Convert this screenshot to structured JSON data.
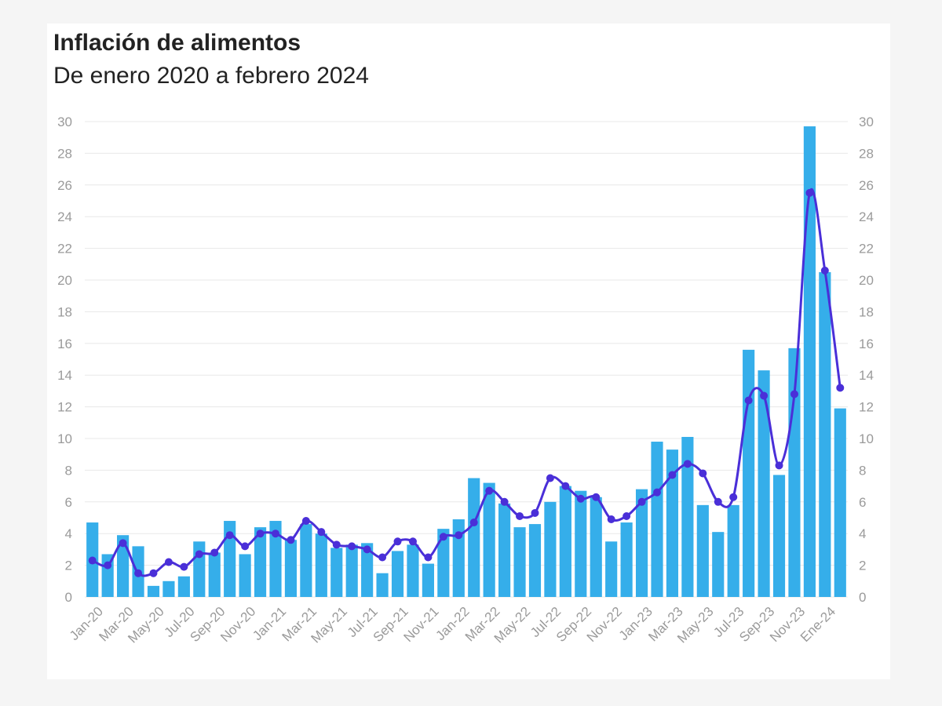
{
  "title": "Inflación de alimentos",
  "subtitle": "De enero 2020 a febrero 2024",
  "colors": {
    "bar": "#35aeea",
    "line": "#4a2fd8",
    "grid": "#e8e8e8",
    "tick": "#9a9a9a"
  },
  "chart_data": {
    "type": "bar",
    "categories": [
      "Jan-20",
      "Feb-20",
      "Mar-20",
      "Apr-20",
      "May-20",
      "Jun-20",
      "Jul-20",
      "Aug-20",
      "Sep-20",
      "Oct-20",
      "Nov-20",
      "Dec-20",
      "Jan-21",
      "Feb-21",
      "Mar-21",
      "Apr-21",
      "May-21",
      "Jun-21",
      "Jul-21",
      "Aug-21",
      "Sep-21",
      "Oct-21",
      "Nov-21",
      "Dec-21",
      "Jan-22",
      "Feb-22",
      "Mar-22",
      "Apr-22",
      "May-22",
      "Jun-22",
      "Jul-22",
      "Aug-22",
      "Sep-22",
      "Oct-22",
      "Nov-22",
      "Dec-22",
      "Jan-23",
      "Feb-23",
      "Mar-23",
      "Apr-23",
      "May-23",
      "Jun-23",
      "Jul-23",
      "Aug-23",
      "Sep-23",
      "Oct-23",
      "Nov-23",
      "Dec-23",
      "Ene-24",
      "Feb-24"
    ],
    "x_tick_labels": [
      "Jan-20",
      "Mar-20",
      "May-20",
      "Jul-20",
      "Sep-20",
      "Nov-20",
      "Jan-21",
      "Mar-21",
      "May-21",
      "Jul-21",
      "Sep-21",
      "Nov-21",
      "Jan-22",
      "Mar-22",
      "May-22",
      "Jul-22",
      "Sep-22",
      "Nov-22",
      "Jan-23",
      "Mar-23",
      "May-23",
      "Jul-23",
      "Sep-23",
      "Nov-23",
      "Ene-24"
    ],
    "series": [
      {
        "type": "bar",
        "values": [
          4.7,
          2.7,
          3.9,
          3.2,
          0.7,
          1.0,
          1.3,
          3.5,
          2.8,
          4.8,
          2.7,
          4.4,
          4.8,
          3.6,
          4.6,
          4.0,
          3.1,
          3.3,
          3.4,
          1.5,
          2.9,
          3.3,
          2.1,
          4.3,
          4.9,
          7.5,
          7.2,
          5.9,
          4.4,
          4.6,
          6.0,
          7.0,
          6.7,
          6.3,
          3.5,
          4.7,
          6.8,
          9.8,
          9.3,
          10.1,
          5.8,
          4.1,
          5.8,
          15.6,
          14.3,
          7.7,
          15.7,
          29.7,
          20.5,
          11.9
        ]
      },
      {
        "type": "line",
        "values": [
          2.3,
          2.0,
          3.4,
          1.5,
          1.5,
          2.2,
          1.9,
          2.7,
          2.8,
          3.9,
          3.2,
          4.0,
          4.0,
          3.6,
          4.8,
          4.1,
          3.3,
          3.2,
          3.0,
          2.5,
          3.5,
          3.5,
          2.5,
          3.8,
          3.9,
          4.7,
          6.7,
          6.0,
          5.1,
          5.3,
          7.5,
          7.0,
          6.2,
          6.3,
          4.9,
          5.1,
          6.0,
          6.6,
          7.7,
          8.4,
          7.8,
          6.0,
          6.3,
          12.4,
          12.7,
          8.3,
          12.8,
          25.5,
          20.6,
          13.2
        ]
      }
    ],
    "ylim": [
      0,
      30
    ],
    "y_ticks": [
      "0",
      "2",
      "4",
      "6",
      "8",
      "10",
      "12",
      "14",
      "16",
      "18",
      "20",
      "22",
      "24",
      "26",
      "28",
      "30"
    ],
    "y_axis_sides": "left and right",
    "grid": true,
    "legend": "none"
  }
}
